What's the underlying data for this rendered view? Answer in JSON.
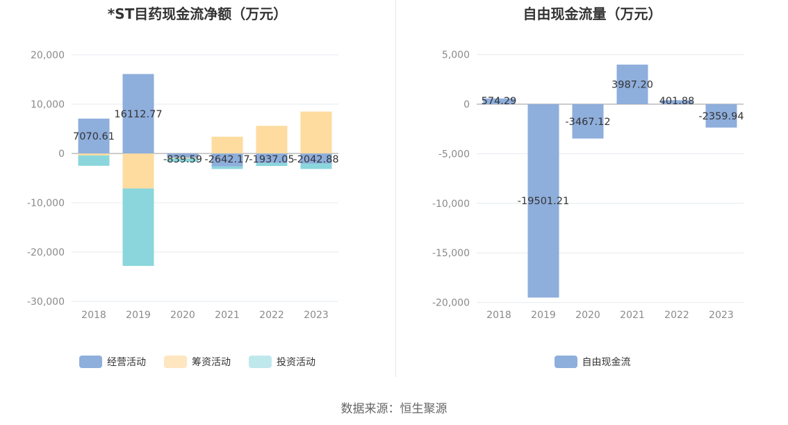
{
  "chart_data": [
    {
      "type": "bar",
      "stacked": true,
      "title": "*ST目药现金流净额（万元）",
      "categories": [
        "2018",
        "2019",
        "2020",
        "2021",
        "2022",
        "2023"
      ],
      "ylim": [
        -30000,
        20000
      ],
      "yticks": [
        20000,
        10000,
        0,
        -10000,
        -20000,
        -30000
      ],
      "ytick_labels": [
        "20,000",
        "10,000",
        "0",
        "-10,000",
        "-20,000",
        "-30,000"
      ],
      "grid": true,
      "legend_position": "bottom",
      "series": [
        {
          "name": "经营活动",
          "color": "#8eaedc",
          "values": [
            7070.61,
            16112.77,
            -839.59,
            -2642.17,
            -1937.05,
            -2042.88
          ]
        },
        {
          "name": "筹资活动",
          "color": "#fedb9f",
          "values": [
            -400,
            -7100,
            -150,
            3400,
            5600,
            8500
          ]
        },
        {
          "name": "投资活动",
          "color": "#8ad6dc",
          "values": [
            -2100,
            -15700,
            -700,
            -500,
            -600,
            -1100
          ]
        }
      ],
      "data_labels": [
        "7070.61",
        "16112.77",
        "-839.59",
        "-2642.17",
        "-1937.05",
        "-2042.88"
      ]
    },
    {
      "type": "bar",
      "style": "waterfall",
      "title": "自由现金流量（万元）",
      "categories": [
        "2018",
        "2019",
        "2020",
        "2021",
        "2022",
        "2023"
      ],
      "ylim": [
        -20000,
        5000
      ],
      "yticks": [
        5000,
        0,
        -5000,
        -10000,
        -15000,
        -20000
      ],
      "ytick_labels": [
        "5,000",
        "0",
        "-5,000",
        "-10,000",
        "-15,000",
        "-20,000"
      ],
      "grid": true,
      "legend_position": "bottom",
      "series": [
        {
          "name": "自由现金流",
          "color": "#8eaedc",
          "values": [
            574.29,
            -19501.21,
            -3467.12,
            3987.2,
            401.88,
            -2359.94
          ]
        }
      ],
      "data_labels": [
        "574.29",
        "-19501.21",
        "-3467.12",
        "3987.20",
        "401.88",
        "-2359.94"
      ]
    }
  ],
  "footer": "数据来源：恒生聚源"
}
